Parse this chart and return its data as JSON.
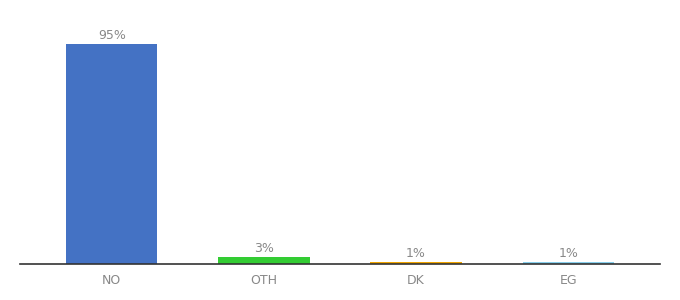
{
  "categories": [
    "NO",
    "OTH",
    "DK",
    "EG"
  ],
  "values": [
    95,
    3,
    1,
    1
  ],
  "labels": [
    "95%",
    "3%",
    "1%",
    "1%"
  ],
  "bar_colors": [
    "#4472c4",
    "#33cc33",
    "#f0a500",
    "#87ceeb"
  ],
  "ylim": [
    0,
    105
  ],
  "background_color": "#ffffff",
  "label_fontsize": 9,
  "tick_fontsize": 9,
  "bar_width": 0.6,
  "x_positions": [
    0,
    1,
    2,
    3
  ]
}
